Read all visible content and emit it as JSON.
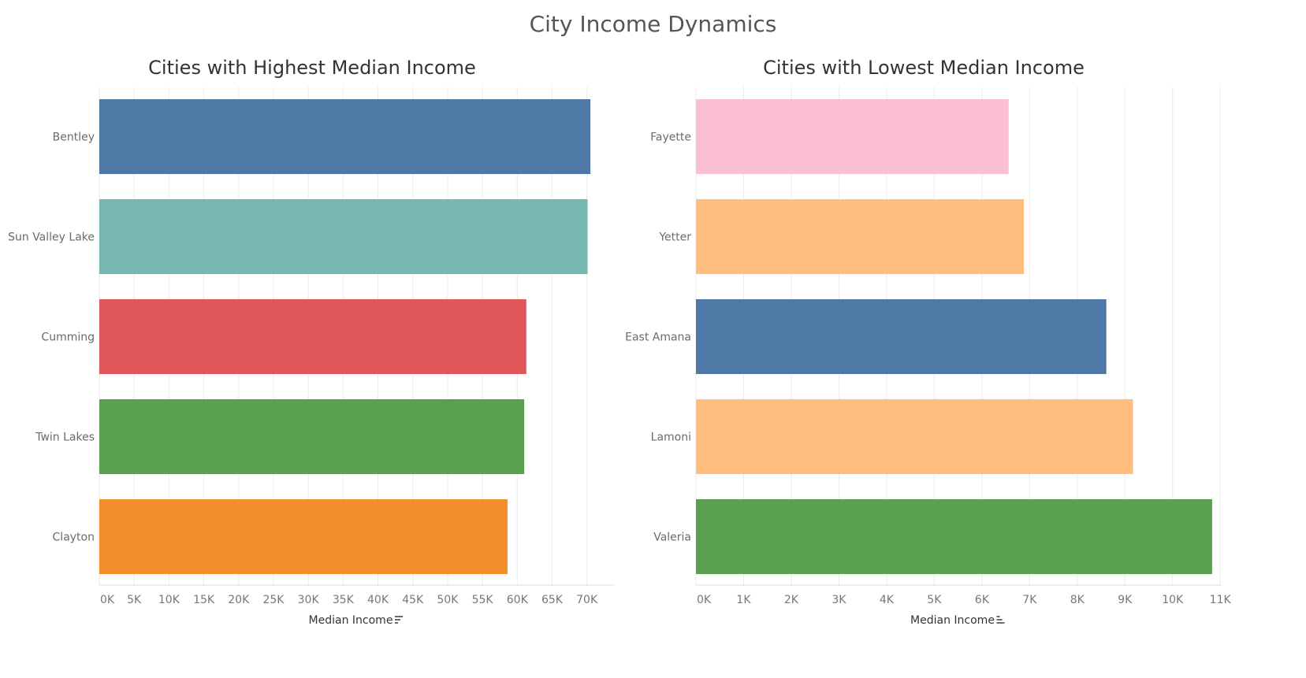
{
  "page": {
    "title": "City Income Dynamics"
  },
  "chart_data": [
    {
      "type": "bar",
      "orientation": "horizontal",
      "title": "Cities with Highest Median Income",
      "categories": [
        "Bentley",
        "Sun Valley Lake",
        "Cumming",
        "Twin Lakes",
        "Clayton"
      ],
      "values": [
        70500,
        70100,
        61300,
        61000,
        58600
      ],
      "colors": [
        "#4e79a7",
        "#76b7b2",
        "#e15759",
        "#59a14f",
        "#f28e2b"
      ],
      "xlabel": "Median Income",
      "xlabel_icon": "sort-descending-icon",
      "xlim": [
        0,
        74000
      ],
      "ticks": [
        0,
        5000,
        10000,
        15000,
        20000,
        25000,
        30000,
        35000,
        40000,
        45000,
        50000,
        55000,
        60000,
        65000,
        70000
      ],
      "tick_labels": [
        "0K",
        "5K",
        "10K",
        "15K",
        "20K",
        "25K",
        "30K",
        "35K",
        "40K",
        "45K",
        "50K",
        "55K",
        "60K",
        "65K",
        "70K"
      ],
      "grid": true
    },
    {
      "type": "bar",
      "orientation": "horizontal",
      "title": "Cities with Lowest Median Income",
      "categories": [
        "Fayette",
        "Yetter",
        "East Amana",
        "Lamoni",
        "Valeria"
      ],
      "values": [
        6560,
        6880,
        8610,
        9170,
        10830
      ],
      "colors": [
        "#fabfd2",
        "#ffbe7d",
        "#4e79a7",
        "#ffbe7d",
        "#59a14f"
      ],
      "xlabel": "Median Income",
      "xlabel_icon": "sort-ascending-icon",
      "xlim": [
        0,
        11030
      ],
      "ticks": [
        0,
        1000,
        2000,
        3000,
        4000,
        5000,
        6000,
        7000,
        8000,
        9000,
        10000,
        11000
      ],
      "tick_labels": [
        "0K",
        "1K",
        "2K",
        "3K",
        "4K",
        "5K",
        "6K",
        "7K",
        "8K",
        "9K",
        "10K",
        "11K"
      ],
      "grid": true
    }
  ]
}
